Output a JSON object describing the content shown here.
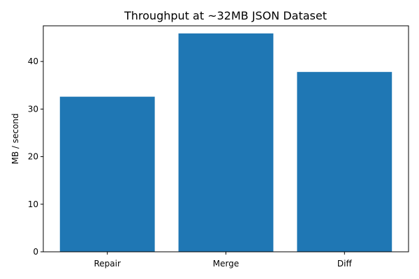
{
  "chart_data": {
    "type": "bar",
    "title": "Throughput at ~32MB JSON Dataset",
    "xlabel": "",
    "ylabel": "MB / second",
    "categories": [
      "Repair",
      "Merge",
      "Diff"
    ],
    "values": [
      32.6,
      45.9,
      37.8
    ],
    "ylim": [
      0,
      47.5
    ],
    "yticks": [
      0,
      10,
      20,
      30,
      40
    ],
    "bar_color": "#1f77b4",
    "grid": false,
    "legend": "none"
  }
}
